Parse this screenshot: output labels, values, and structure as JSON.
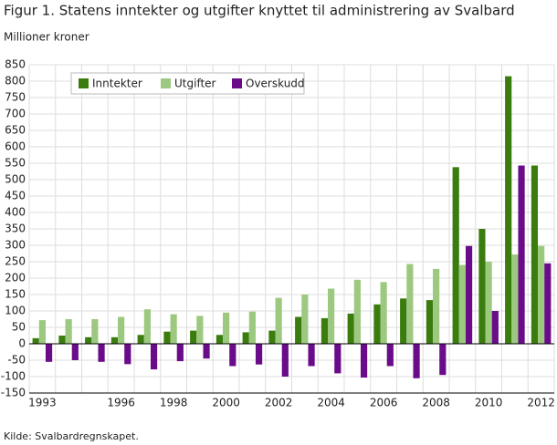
{
  "chart_data": {
    "type": "bar",
    "title": "Figur 1. Statens inntekter og utgifter knyttet til administrering av Svalbard",
    "y_label": "Millioner kroner",
    "source": "Kilde: Svalbardregnskapet.",
    "categories": [
      "1993",
      null,
      null,
      "1996",
      null,
      "1998",
      null,
      "2000",
      null,
      "2002",
      null,
      "2004",
      null,
      "2006",
      null,
      "2008",
      null,
      "2010",
      null,
      "2012"
    ],
    "series": [
      {
        "name": "Inntekter",
        "color": "#3a7d0e",
        "values": [
          17,
          25,
          20,
          20,
          27,
          37,
          40,
          27,
          35,
          40,
          82,
          78,
          92,
          120,
          138,
          133,
          538,
          350,
          815,
          543
        ]
      },
      {
        "name": "Utgifter",
        "color": "#9cc97f",
        "values": [
          72,
          75,
          75,
          82,
          105,
          90,
          85,
          95,
          98,
          140,
          150,
          168,
          195,
          188,
          243,
          228,
          240,
          250,
          272,
          298
        ]
      },
      {
        "name": "Overskudd",
        "color": "#6a0b8a",
        "values": [
          -55,
          -50,
          -55,
          -62,
          -78,
          -53,
          -45,
          -68,
          -63,
          -100,
          -68,
          -90,
          -103,
          -68,
          -105,
          -95,
          298,
          100,
          543,
          245
        ]
      }
    ],
    "ylim": [
      -150,
      850
    ],
    "yticks": [
      -150,
      -100,
      -50,
      0,
      50,
      100,
      150,
      200,
      250,
      300,
      350,
      400,
      450,
      500,
      550,
      600,
      650,
      700,
      750,
      800,
      850
    ],
    "grid": true,
    "legend": "top-left"
  }
}
